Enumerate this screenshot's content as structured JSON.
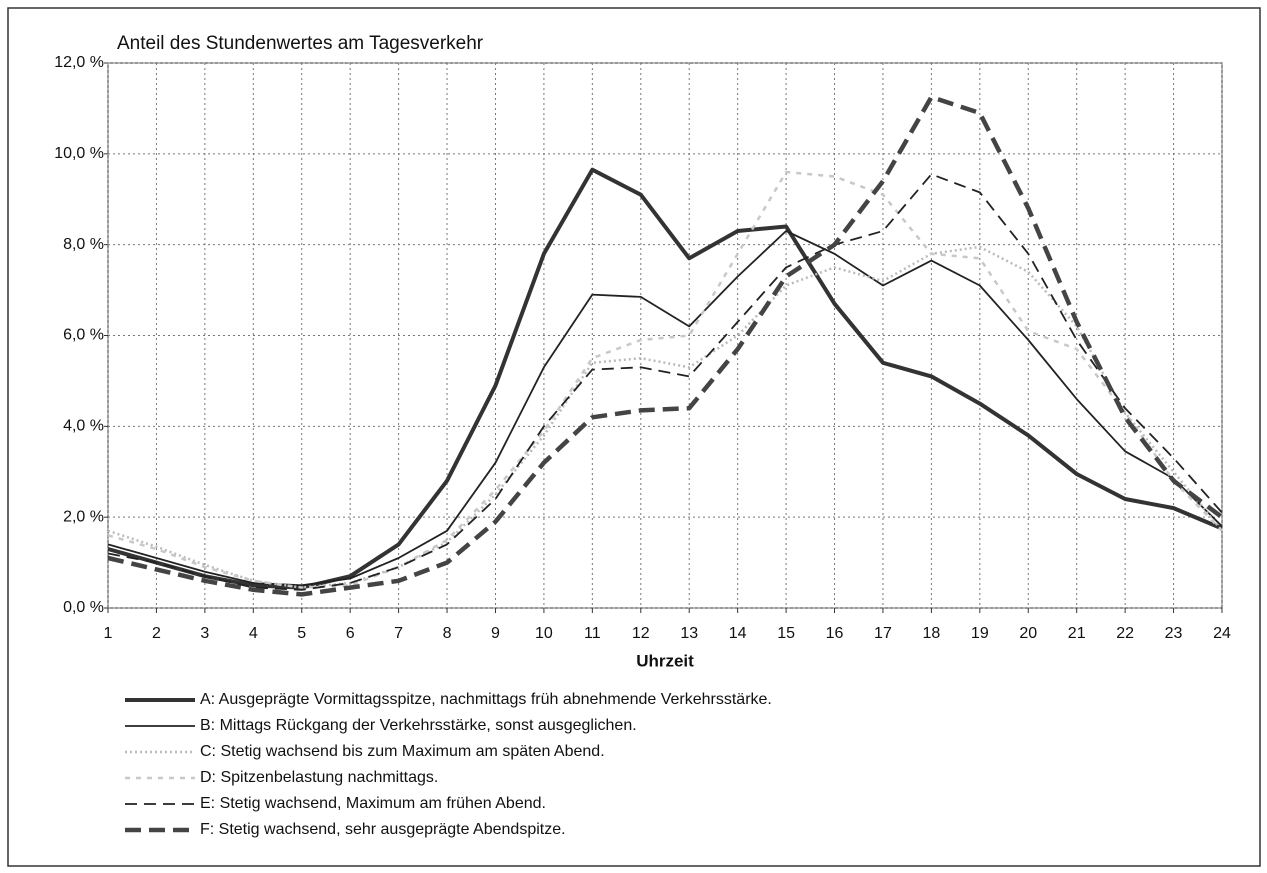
{
  "chart_data": {
    "type": "line",
    "title": "Anteil des Stundenwertes am Tagesverkehr",
    "xlabel": "Uhrzeit",
    "x": [
      1,
      2,
      3,
      4,
      5,
      6,
      7,
      8,
      9,
      10,
      11,
      12,
      13,
      14,
      15,
      16,
      17,
      18,
      19,
      20,
      21,
      22,
      23,
      24
    ],
    "xlim": [
      1,
      24
    ],
    "xticks": [
      1,
      2,
      3,
      4,
      5,
      6,
      7,
      8,
      9,
      10,
      11,
      12,
      13,
      14,
      15,
      16,
      17,
      18,
      19,
      20,
      21,
      22,
      23,
      24
    ],
    "ylim": [
      0,
      12
    ],
    "yticks": [
      {
        "value": 0,
        "label": "0,0 %"
      },
      {
        "value": 2,
        "label": "2,0 %"
      },
      {
        "value": 4,
        "label": "4,0 %"
      },
      {
        "value": 6,
        "label": "6,0 %"
      },
      {
        "value": 8,
        "label": "8,0 %"
      },
      {
        "value": 10,
        "label": "10,0 %"
      },
      {
        "value": 12,
        "label": "12,0 %"
      }
    ],
    "grid": true,
    "legend": "bottom",
    "series": [
      {
        "name": "A: Ausgeprägte Vormittagsspitze, nachmittags früh abnehmende Verkehrsstärke.",
        "color": "#333333",
        "values": [
          1.3,
          1.0,
          0.7,
          0.5,
          0.45,
          0.7,
          1.4,
          2.8,
          4.9,
          7.8,
          9.65,
          9.1,
          7.7,
          8.3,
          8.4,
          6.7,
          5.4,
          5.1,
          4.5,
          3.8,
          2.95,
          2.4,
          2.2,
          1.75
        ]
      },
      {
        "name": "B: Mittags Rückgang der Verkehrsstärke, sonst ausgeglichen.",
        "color": "#222222",
        "values": [
          1.4,
          1.1,
          0.8,
          0.55,
          0.5,
          0.65,
          1.1,
          1.7,
          3.2,
          5.3,
          6.9,
          6.85,
          6.2,
          7.3,
          8.3,
          7.8,
          7.1,
          7.65,
          7.1,
          5.9,
          4.6,
          3.45,
          2.85,
          1.8
        ]
      },
      {
        "name": "C: Stetig wachsend bis zum Maximum am späten Abend.",
        "color": "#bbbbbb",
        "values": [
          1.7,
          1.35,
          0.95,
          0.6,
          0.45,
          0.55,
          0.9,
          1.45,
          2.5,
          3.8,
          5.4,
          5.5,
          5.3,
          6.0,
          7.1,
          7.5,
          7.2,
          7.8,
          7.95,
          7.4,
          6.2,
          4.3,
          3.0,
          1.7
        ]
      },
      {
        "name": "D: Spitzenbelastung nachmittags.",
        "color": "#c8c8c8",
        "values": [
          1.6,
          1.3,
          0.9,
          0.6,
          0.45,
          0.5,
          0.9,
          1.5,
          2.6,
          3.9,
          5.5,
          5.9,
          6.0,
          7.8,
          9.6,
          9.5,
          9.1,
          7.8,
          7.7,
          6.1,
          5.7,
          4.3,
          2.8,
          1.7
        ]
      },
      {
        "name": "E: Stetig wachsend, Maximum am frühen Abend.",
        "color": "#222222",
        "values": [
          1.2,
          1.0,
          0.7,
          0.45,
          0.4,
          0.55,
          0.9,
          1.4,
          2.4,
          4.0,
          5.25,
          5.3,
          5.1,
          6.3,
          7.5,
          8.0,
          8.3,
          9.55,
          9.15,
          7.8,
          5.9,
          4.4,
          3.3,
          2.1
        ]
      },
      {
        "name": "F: Stetig wachsend, sehr ausgeprägte Abendspitze.",
        "color": "#444444",
        "values": [
          1.1,
          0.85,
          0.6,
          0.4,
          0.3,
          0.45,
          0.6,
          1.0,
          1.9,
          3.2,
          4.2,
          4.35,
          4.4,
          5.7,
          7.3,
          8.0,
          9.4,
          11.25,
          10.9,
          8.8,
          6.3,
          4.2,
          2.8,
          2.0
        ]
      }
    ]
  }
}
